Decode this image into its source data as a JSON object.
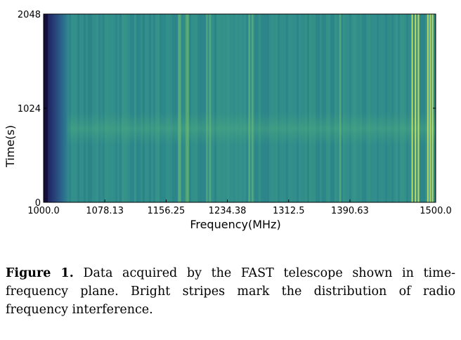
{
  "chart_data": {
    "type": "heatmap",
    "title": "",
    "xlabel": "Frequency(MHz)",
    "ylabel": "Time(s)",
    "xlim": [
      1000.0,
      1500.0
    ],
    "ylim": [
      0,
      2048
    ],
    "x_ticks": [
      1000.0,
      1078.13,
      1156.25,
      1234.38,
      1312.5,
      1390.63,
      1500.0
    ],
    "x_tick_labels": [
      "1000.0",
      "1078.13",
      "1156.25",
      "1234.38",
      "1312.5",
      "1390.63",
      "1500.0"
    ],
    "y_ticks": [
      0,
      1024,
      2048
    ],
    "y_tick_labels": [
      "0",
      "1024",
      "2048"
    ],
    "colormap": "viridis",
    "interference_stripes_mhz": [
      1172,
      1174,
      1182,
      1184,
      1208,
      1212,
      1262,
      1266,
      1378,
      1470,
      1474,
      1478,
      1490,
      1493,
      1496
    ],
    "grid": false
  },
  "caption": {
    "label": "Figure 1.",
    "text": "Data acquired by the FAST telescope shown in time-frequency plane. Bright stripes mark the distribution of radio frequency interference."
  }
}
